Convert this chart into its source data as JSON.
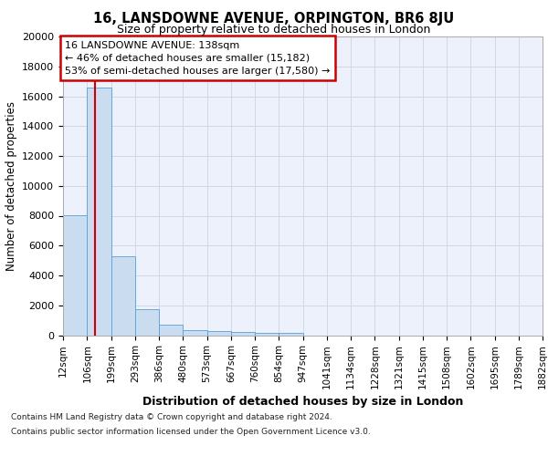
{
  "title": "16, LANSDOWNE AVENUE, ORPINGTON, BR6 8JU",
  "subtitle": "Size of property relative to detached houses in London",
  "xlabel": "Distribution of detached houses by size in London",
  "ylabel": "Number of detached properties",
  "bins": [
    "12sqm",
    "106sqm",
    "199sqm",
    "293sqm",
    "386sqm",
    "480sqm",
    "573sqm",
    "667sqm",
    "760sqm",
    "854sqm",
    "947sqm",
    "1041sqm",
    "1134sqm",
    "1228sqm",
    "1321sqm",
    "1415sqm",
    "1508sqm",
    "1602sqm",
    "1695sqm",
    "1789sqm",
    "1882sqm"
  ],
  "bin_edges": [
    12,
    106,
    199,
    293,
    386,
    480,
    573,
    667,
    760,
    854,
    947,
    1041,
    1134,
    1228,
    1321,
    1415,
    1508,
    1602,
    1695,
    1789,
    1882
  ],
  "values": [
    8050,
    16600,
    5300,
    1750,
    700,
    340,
    270,
    215,
    175,
    145,
    0,
    0,
    0,
    0,
    0,
    0,
    0,
    0,
    0,
    0
  ],
  "bar_color": "#c9dcf0",
  "bar_edge_color": "#5a9fd4",
  "grid_color": "#d0d8e8",
  "vline_x": 138,
  "vline_color": "#cc0000",
  "annotation_text": "16 LANSDOWNE AVENUE: 138sqm\n← 46% of detached houses are smaller (15,182)\n53% of semi-detached houses are larger (17,580) →",
  "annotation_box_color": "#ffffff",
  "annotation_box_edgecolor": "#cc0000",
  "ylim": [
    0,
    20000
  ],
  "yticks": [
    0,
    2000,
    4000,
    6000,
    8000,
    10000,
    12000,
    14000,
    16000,
    18000,
    20000
  ],
  "footer_line1": "Contains HM Land Registry data © Crown copyright and database right 2024.",
  "footer_line2": "Contains public sector information licensed under the Open Government Licence v3.0.",
  "background_color": "#edf1fb"
}
